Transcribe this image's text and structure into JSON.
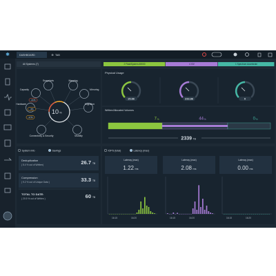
{
  "header": {
    "tabs": [
      "DASHBOARD",
      "TAB"
    ]
  },
  "filter": {
    "scope": "All Systems (7)",
    "systems": [
      {
        "label": "2 FlashSystem A9000",
        "color": "#8cc63f"
      },
      {
        "label": "4 XIV",
        "color": "#a77bd6"
      },
      {
        "label": "1 Spectrum Accelerate",
        "color": "#45b8a5"
      }
    ]
  },
  "health": {
    "center_value": 10,
    "center_unit": "%",
    "nodes": [
      "Snapshots",
      "Mapping",
      "Capacity",
      "Mirroring",
      "Hardware",
      "Migration",
      "Connectivity & Security",
      "Mobility"
    ],
    "badges": [
      "-21%",
      "-3%",
      "-17%"
    ]
  },
  "physical_usage": {
    "title": "Physical Usage",
    "gauges": [
      {
        "value": 15.86,
        "color": "#8cc63f"
      },
      {
        "value": 233.86,
        "color": "#a77bd6"
      },
      {
        "value": 0,
        "color": "#45b8a5"
      }
    ],
    "volumes_title": "Written/Allocated Volumes",
    "percents": [
      {
        "value": 7,
        "unit": "%"
      },
      {
        "value": 44,
        "unit": "%"
      },
      {
        "value": 0,
        "unit": "%"
      }
    ],
    "total": {
      "value": 2339,
      "unit": "TB"
    }
  },
  "savings": {
    "tabs": [
      "System Info",
      "Savings"
    ],
    "rows": [
      {
        "label": "Deduplication",
        "note": "( 5.4 % out of Written)",
        "value": 26.7,
        "unit": "TB"
      },
      {
        "label": "Compression",
        "note": "( 9.2 % out of Unique Data )",
        "value": 33.3,
        "unit": "TB"
      },
      {
        "label": "TOTAL TO DATE:",
        "note": "( 20.5 % out of Written )",
        "value": 60,
        "unit": "TB"
      }
    ]
  },
  "performance": {
    "tabs": [
      "IOPS (total)",
      "Latency (max)"
    ],
    "x_ticks": [
      "16:15",
      "16:20"
    ],
    "ylim": [
      0,
      2.5
    ],
    "charts": [
      {
        "title": "Latency (max)",
        "value": "1.22",
        "unit": "ms",
        "color": "#8cc63f",
        "values": [
          0,
          0,
          0,
          0,
          0,
          0,
          0,
          0,
          0,
          0,
          0,
          0,
          0,
          0,
          0.1,
          0.3,
          0.9,
          0.4,
          1.22,
          0.6,
          0.5,
          0.2,
          0.1,
          0.05
        ]
      },
      {
        "title": "Latency (max)",
        "value": "2.08",
        "unit": "ms",
        "color": "#a77bd6",
        "values": [
          0.05,
          0,
          0,
          0.1,
          0,
          0.08,
          0,
          0,
          0,
          0,
          0,
          0,
          0,
          0.4,
          0.9,
          0.3,
          2.08,
          0.5,
          1.1,
          0.3,
          0.6,
          0.2,
          0.1,
          0.05
        ]
      },
      {
        "title": "Latency (max)",
        "value": "0.00",
        "unit": "ms",
        "color": "#45b8a5",
        "values": [
          0,
          0,
          0,
          0,
          0,
          0,
          0,
          0,
          0,
          0,
          0,
          0,
          0,
          0,
          0,
          0,
          0,
          0,
          0,
          0,
          0,
          0,
          0,
          0
        ]
      }
    ]
  }
}
